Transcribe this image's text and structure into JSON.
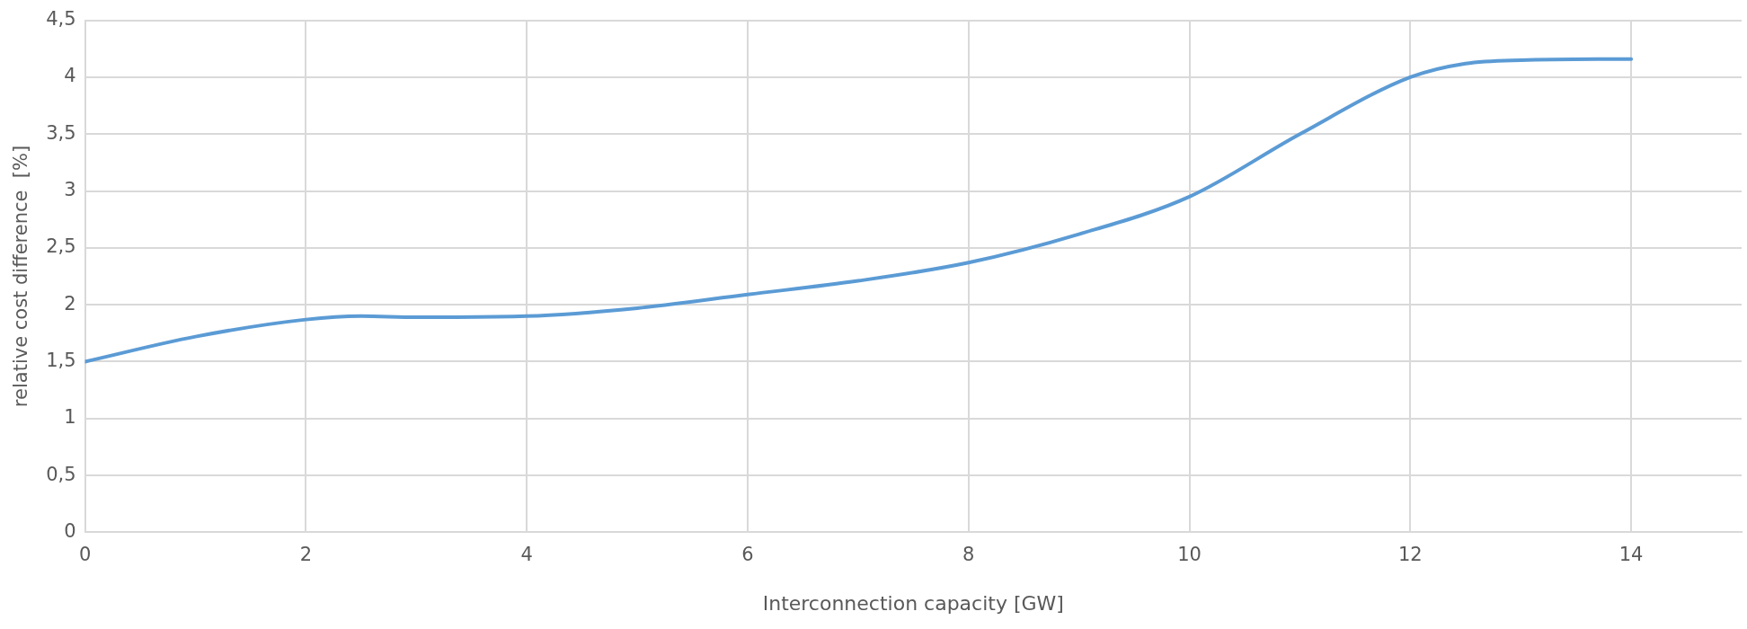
{
  "chart_data": {
    "type": "line",
    "xlabel": "Interconnection capacity [GW]",
    "ylabel": "relative cost difference  [%]",
    "x": [
      0,
      1,
      2,
      2.5,
      3,
      4,
      5,
      6,
      7,
      8,
      9,
      10,
      11,
      12,
      12.5,
      13,
      14
    ],
    "series": [
      {
        "color": "#5b9bd5",
        "values": [
          1.5,
          1.72,
          1.87,
          1.9,
          1.89,
          1.9,
          1.97,
          2.09,
          2.21,
          2.37,
          2.62,
          2.95,
          3.5,
          4.0,
          4.12,
          4.15,
          4.16
        ]
      }
    ],
    "xlim": [
      0,
      15
    ],
    "xticks": [
      0,
      2,
      4,
      6,
      8,
      10,
      12,
      14
    ],
    "ylim": [
      0,
      4.5
    ],
    "yticks": [
      0,
      {
        "value": 0.5,
        "label": "0,5"
      },
      1,
      {
        "value": 1.5,
        "label": "1,5"
      },
      2,
      {
        "value": 2.5,
        "label": "2,5"
      },
      3,
      {
        "value": 3.5,
        "label": "3,5"
      },
      4,
      {
        "value": 4.5,
        "label": "4,5"
      }
    ],
    "grid": true,
    "legend": false,
    "marker": "none",
    "line_style": "solid"
  }
}
